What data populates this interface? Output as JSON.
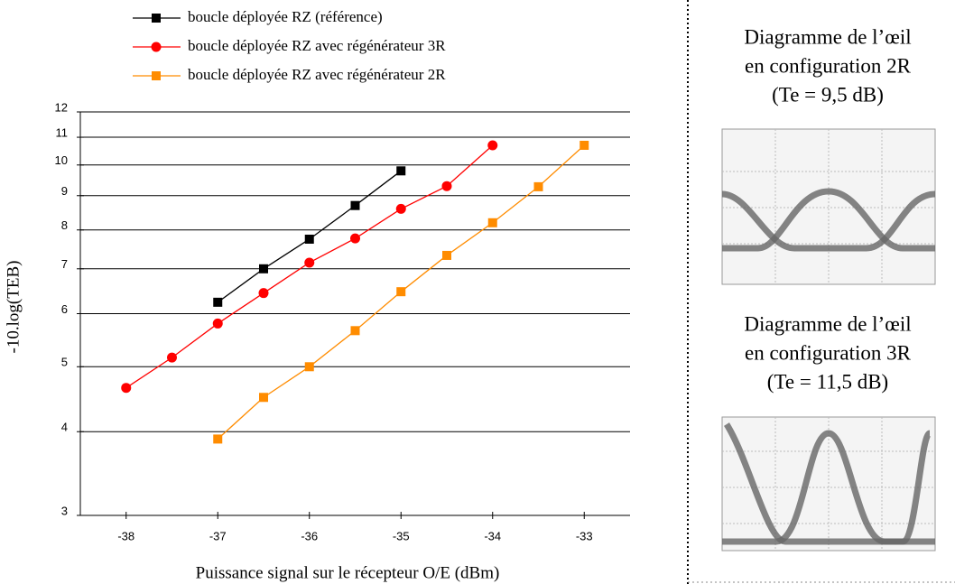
{
  "chart_data": {
    "type": "line",
    "x_label": "Puissance signal sur le récepteur O/E (dBm)",
    "y_label": "-10.log(TEB)",
    "xlim": [
      -38.5,
      -32.5
    ],
    "xticks": [
      -38,
      -37,
      -36,
      -35,
      -34,
      -33
    ],
    "ylim": [
      3,
      12
    ],
    "yticks": [
      3,
      4,
      5,
      6,
      7,
      8,
      9,
      10,
      11,
      12
    ],
    "y_log": true,
    "grid": true,
    "series": [
      {
        "name": "boucle déployée RZ (référence)",
        "color": "#000000",
        "marker": "square",
        "x": [
          -37,
          -36.5,
          -36,
          -35.5,
          -35
        ],
        "values": [
          6.24,
          7.0,
          7.75,
          8.7,
          9.8
        ]
      },
      {
        "name": "boucle déployée RZ avec régénérateur 3R",
        "color": "#ff0000",
        "marker": "circle",
        "x": [
          -38,
          -37.5,
          -37,
          -36.5,
          -36,
          -35.5,
          -35,
          -34.5,
          -34
        ],
        "values": [
          4.65,
          5.16,
          5.8,
          6.44,
          7.15,
          7.77,
          8.6,
          9.3,
          10.7
        ]
      },
      {
        "name": "boucle déployée RZ avec régénérateur 2R",
        "color": "#ff8c00",
        "marker": "square",
        "x": [
          -37,
          -36.5,
          -36,
          -35.5,
          -35,
          -34.5,
          -34,
          -33.5,
          -33
        ],
        "values": [
          3.9,
          4.5,
          5.0,
          5.66,
          6.47,
          7.33,
          8.2,
          9.28,
          10.7
        ]
      }
    ]
  },
  "eye_diagrams": [
    {
      "title": [
        "Diagramme de l’œil",
        "en configuration 2R",
        "(Te = 9,5 dB)"
      ]
    },
    {
      "title": [
        "Diagramme de l’œil",
        "en configuration 3R",
        "(Te = 11,5 dB)"
      ]
    }
  ]
}
